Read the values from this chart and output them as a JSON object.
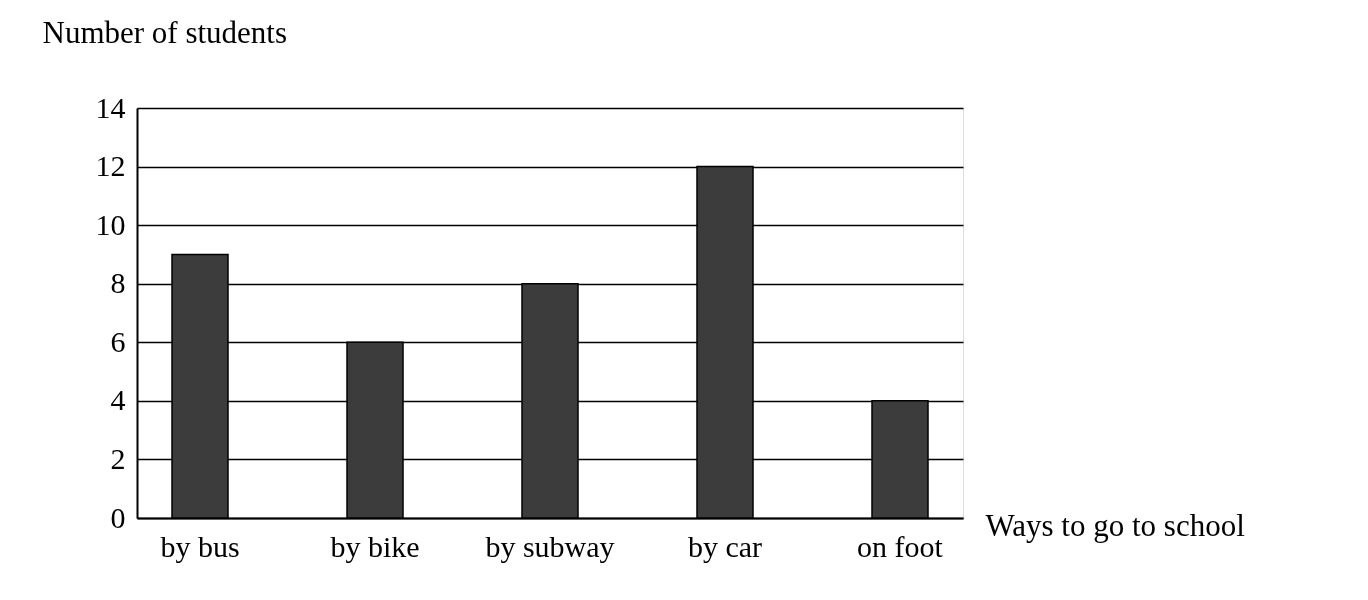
{
  "chart_data": {
    "type": "bar",
    "xlabel": "Ways to go to school",
    "ylabel": "Number of students",
    "categories": [
      "by bus",
      "by bike",
      "by subway",
      "by car",
      "on foot"
    ],
    "values": [
      9,
      6,
      8,
      12,
      4
    ],
    "color": "#3c3c3c",
    "ylim": [
      0,
      14
    ],
    "yticks": [
      0,
      2,
      4,
      6,
      8,
      10,
      12,
      14
    ],
    "grid": "y"
  }
}
